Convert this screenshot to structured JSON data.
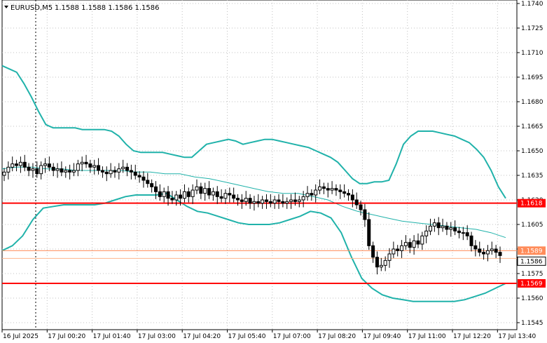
{
  "header": {
    "symbol": "EURUSD,M5",
    "quote": "1.1588 1.1588 1.1586 1.1586"
  },
  "colors": {
    "background": "#ffffff",
    "grid": "#c0c0c0",
    "candle": "#000000",
    "band": "#20b2aa",
    "level_line": "#ff0000",
    "bid_line": "#ff8c5a",
    "ask_line": "#ffb48c",
    "price_tag_red": "#ff0000",
    "price_tag_orange": "#ff8c5a",
    "price_tag_current": "#ffffff"
  },
  "chart_data": {
    "type": "candlestick",
    "symbol": "EURUSD",
    "timeframe": "M5",
    "ylim": [
      1.154,
      1.1742
    ],
    "y_ticks": [
      "1.1740",
      "1.1725",
      "1.1710",
      "1.1695",
      "1.1680",
      "1.1665",
      "1.1650",
      "1.1635",
      "1.1620",
      "1.1605",
      "1.1590",
      "1.1575",
      "1.1560",
      "1.1545"
    ],
    "x_ticks": [
      "16 Jul 2025",
      "17 Jul 00:20",
      "17 Jul 01:40",
      "17 Jul 03:00",
      "17 Jul 04:20",
      "17 Jul 05:40",
      "17 Jul 07:00",
      "17 Jul 08:20",
      "17 Jul 09:40",
      "17 Jul 11:00",
      "17 Jul 12:20",
      "17 Jul 13:40"
    ],
    "closes": [
      1.1637,
      1.164,
      1.1642,
      1.1641,
      1.1643,
      1.164,
      1.1638,
      1.1639,
      1.1636,
      1.1641,
      1.1642,
      1.164,
      1.1638,
      1.1639,
      1.1637,
      1.1638,
      1.1637,
      1.1638,
      1.1642,
      1.1643,
      1.1642,
      1.164,
      1.1641,
      1.1638,
      1.1637,
      1.1636,
      1.1638,
      1.1637,
      1.1639,
      1.164,
      1.1638,
      1.1637,
      1.1635,
      1.1634,
      1.1632,
      1.163,
      1.1628,
      1.1625,
      1.1622,
      1.1625,
      1.1621,
      1.162,
      1.1623,
      1.1621,
      1.1625,
      1.1622,
      1.1626,
      1.1628,
      1.1624,
      1.1627,
      1.1623,
      1.1625,
      1.1622,
      1.1621,
      1.1624,
      1.1623,
      1.1621,
      1.162,
      1.1619,
      1.1621,
      1.1618,
      1.1619,
      1.1618,
      1.162,
      1.1619,
      1.1618,
      1.162,
      1.1619,
      1.1618,
      1.1619,
      1.162,
      1.1619,
      1.162,
      1.1622,
      1.1624,
      1.1623,
      1.1626,
      1.1628,
      1.1627,
      1.1626,
      1.1627,
      1.1626,
      1.1625,
      1.1624,
      1.1623,
      1.162,
      1.1617,
      1.1614,
      1.1608,
      1.1592,
      1.1585,
      1.1579,
      1.158,
      1.1583,
      1.1587,
      1.159,
      1.1589,
      1.1592,
      1.1594,
      1.1591,
      1.1595,
      1.1593,
      1.1598,
      1.1601,
      1.1604,
      1.1606,
      1.1603,
      1.1604,
      1.1602,
      1.1603,
      1.1601,
      1.16,
      1.16,
      1.1598,
      1.1592,
      1.159,
      1.1588,
      1.1587,
      1.1589,
      1.159,
      1.1588,
      1.1586
    ],
    "upper_band": [
      1.1702,
      1.17,
      1.1698,
      1.1691,
      1.1683,
      1.1674,
      1.1666,
      1.1664,
      1.1664,
      1.1664,
      1.1664,
      1.1663,
      1.1663,
      1.1663,
      1.1663,
      1.1662,
      1.1659,
      1.1654,
      1.165,
      1.1649,
      1.1649,
      1.1649,
      1.1649,
      1.1648,
      1.1647,
      1.1646,
      1.1646,
      1.165,
      1.1654,
      1.1655,
      1.1656,
      1.1657,
      1.1656,
      1.1654,
      1.1655,
      1.1656,
      1.1657,
      1.1657,
      1.1656,
      1.1655,
      1.1654,
      1.1653,
      1.1652,
      1.165,
      1.1648,
      1.1646,
      1.1643,
      1.1638,
      1.1633,
      1.163,
      1.163,
      1.1631,
      1.1631,
      1.1632,
      1.1642,
      1.1654,
      1.1659,
      1.1662,
      1.1662,
      1.1662,
      1.1661,
      1.166,
      1.1659,
      1.1657,
      1.1655,
      1.1651,
      1.1646,
      1.1638,
      1.1628,
      1.1621
    ],
    "middle_band": [
      1.1639,
      1.164,
      1.164,
      1.1639,
      1.1639,
      1.1638,
      1.1638,
      1.1638,
      1.1638,
      1.1637,
      1.1637,
      1.1636,
      1.1636,
      1.1634,
      1.1633,
      1.1631,
      1.1629,
      1.1627,
      1.1625,
      1.1624,
      1.1624,
      1.1622,
      1.162,
      1.1616,
      1.1613,
      1.1611,
      1.1609,
      1.1607,
      1.1606,
      1.1605,
      1.1604,
      1.1603,
      1.1602,
      1.16,
      1.1597
    ],
    "lower_band": [
      1.1589,
      1.1592,
      1.1598,
      1.1608,
      1.1615,
      1.1616,
      1.1617,
      1.1617,
      1.1617,
      1.1617,
      1.1618,
      1.162,
      1.1622,
      1.1623,
      1.1623,
      1.1623,
      1.1624,
      1.162,
      1.1616,
      1.1613,
      1.1612,
      1.161,
      1.1608,
      1.1606,
      1.1605,
      1.1605,
      1.1605,
      1.1606,
      1.1608,
      1.161,
      1.1613,
      1.1612,
      1.1609,
      1.16,
      1.1585,
      1.1572,
      1.1566,
      1.1562,
      1.156,
      1.1559,
      1.1558,
      1.1558,
      1.1558,
      1.1558,
      1.1558,
      1.1559,
      1.1561,
      1.1563,
      1.1566,
      1.1569
    ],
    "levels": [
      {
        "price": 1.1618,
        "label": "1.1618"
      },
      {
        "price": 1.1569,
        "label": "1.1569"
      }
    ],
    "bid_line": {
      "price": 1.1589,
      "label": "1.1589"
    },
    "current_price": {
      "price": 1.1586,
      "label": "1.1586"
    },
    "period_separator_time": "17 Jul 00:00"
  }
}
